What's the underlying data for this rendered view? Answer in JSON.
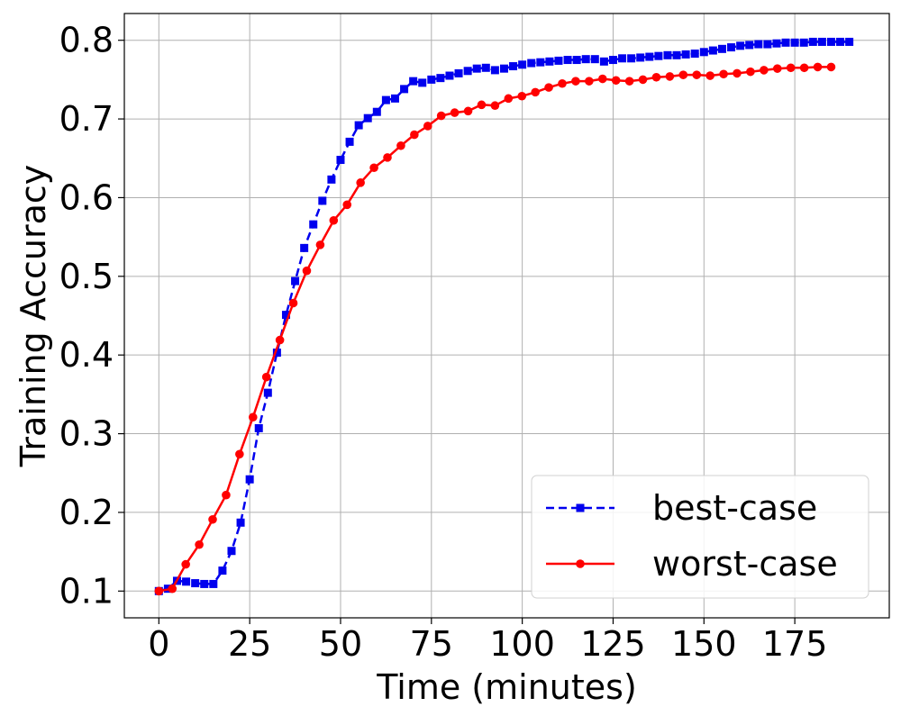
{
  "chart_data": {
    "type": "line",
    "title": "",
    "xlabel": "Time (minutes)",
    "ylabel": "Training Accuracy",
    "xlim": [
      -9.5,
      201
    ],
    "ylim": [
      0.066,
      0.834
    ],
    "xticks": [
      0,
      25,
      50,
      75,
      100,
      125,
      150,
      175
    ],
    "yticks": [
      0.1,
      0.2,
      0.3,
      0.4,
      0.5,
      0.6,
      0.7,
      0.8
    ],
    "xtick_labels": [
      "0",
      "25",
      "50",
      "75",
      "100",
      "125",
      "150",
      "175"
    ],
    "ytick_labels": [
      "0.1",
      "0.2",
      "0.3",
      "0.4",
      "0.5",
      "0.6",
      "0.7",
      "0.8"
    ],
    "grid": true,
    "legend_position": "lower-right",
    "series": [
      {
        "name": "best-case",
        "color": "#0000ee",
        "linestyle": "dashed",
        "marker": "square",
        "x": [
          0,
          2.5,
          5,
          7.5,
          10,
          12.5,
          15,
          17.5,
          20,
          22.5,
          25,
          27.5,
          30,
          32.5,
          35,
          37.5,
          40,
          42.5,
          45,
          47.5,
          50,
          52.5,
          55,
          57.5,
          60,
          62.5,
          65,
          67.5,
          70,
          72.5,
          75,
          77.5,
          80,
          82.5,
          85,
          87.5,
          90,
          92.5,
          95,
          97.5,
          100,
          102.5,
          105,
          107.5,
          110,
          112.5,
          115,
          117.5,
          120,
          122.5,
          125,
          127.5,
          130,
          132.5,
          135,
          137.5,
          140,
          142.5,
          145,
          147.5,
          150,
          152.5,
          155,
          157.5,
          160,
          162.5,
          165,
          167.5,
          170,
          172.5,
          175,
          177.5,
          180,
          182.5,
          185,
          187.5,
          190
        ],
        "y": [
          0.1,
          0.103,
          0.113,
          0.112,
          0.11,
          0.109,
          0.109,
          0.126,
          0.151,
          0.187,
          0.242,
          0.307,
          0.352,
          0.403,
          0.451,
          0.494,
          0.536,
          0.566,
          0.596,
          0.623,
          0.648,
          0.671,
          0.692,
          0.701,
          0.709,
          0.724,
          0.726,
          0.738,
          0.748,
          0.746,
          0.75,
          0.752,
          0.755,
          0.758,
          0.761,
          0.764,
          0.765,
          0.762,
          0.764,
          0.767,
          0.769,
          0.771,
          0.772,
          0.773,
          0.774,
          0.775,
          0.775,
          0.776,
          0.776,
          0.773,
          0.775,
          0.777,
          0.777,
          0.778,
          0.779,
          0.78,
          0.781,
          0.781,
          0.782,
          0.783,
          0.785,
          0.787,
          0.789,
          0.791,
          0.793,
          0.794,
          0.795,
          0.795,
          0.796,
          0.797,
          0.797,
          0.797,
          0.798,
          0.798,
          0.798,
          0.798,
          0.798
        ]
      },
      {
        "name": "worst-case",
        "color": "#ff0000",
        "linestyle": "solid",
        "marker": "circle",
        "x": [
          0,
          3.7,
          7.4,
          11.1,
          14.8,
          18.5,
          22.2,
          25.9,
          29.6,
          33.3,
          37,
          40.7,
          44.4,
          48.1,
          51.8,
          55.5,
          59.2,
          62.9,
          66.6,
          70.3,
          74,
          77.7,
          81.4,
          85.1,
          88.8,
          92.5,
          96.2,
          99.9,
          103.6,
          107.3,
          111,
          114.7,
          118.4,
          122.1,
          125.8,
          129.5,
          133.2,
          136.9,
          140.6,
          144.3,
          148,
          151.7,
          155.4,
          159.1,
          162.8,
          166.5,
          170.2,
          173.9,
          177.6,
          181.3,
          185
        ],
        "y": [
          0.1,
          0.103,
          0.134,
          0.159,
          0.191,
          0.222,
          0.274,
          0.321,
          0.372,
          0.419,
          0.466,
          0.507,
          0.54,
          0.571,
          0.591,
          0.619,
          0.638,
          0.651,
          0.666,
          0.68,
          0.691,
          0.704,
          0.708,
          0.71,
          0.718,
          0.717,
          0.726,
          0.729,
          0.734,
          0.74,
          0.745,
          0.748,
          0.748,
          0.751,
          0.749,
          0.748,
          0.75,
          0.753,
          0.754,
          0.756,
          0.756,
          0.755,
          0.757,
          0.758,
          0.76,
          0.762,
          0.764,
          0.765,
          0.765,
          0.766,
          0.766
        ]
      }
    ]
  }
}
